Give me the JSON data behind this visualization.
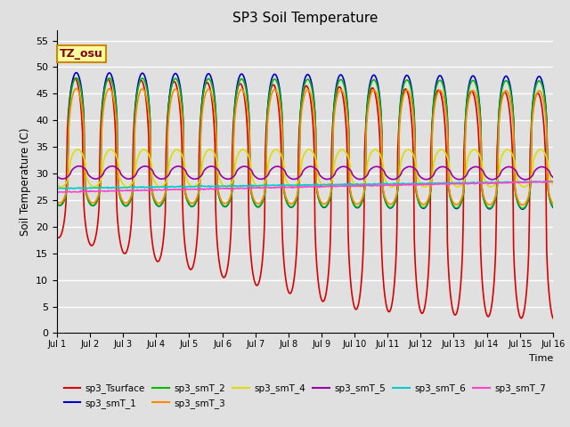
{
  "title": "SP3 Soil Temperature",
  "xlabel": "Time",
  "ylabel": "Soil Temperature (C)",
  "ylim": [
    0,
    57
  ],
  "yticks": [
    0,
    5,
    10,
    15,
    20,
    25,
    30,
    35,
    40,
    45,
    50,
    55
  ],
  "background_color": "#e0e0e0",
  "grid_color": "#ffffff",
  "annotation_text": "TZ_osu",
  "annotation_bg": "#ffffa0",
  "annotation_border": "#cc8800",
  "series": {
    "sp3_Tsurface": {
      "color": "#dd0000",
      "lw": 1.2
    },
    "sp3_smT_1": {
      "color": "#0000cc",
      "lw": 1.2
    },
    "sp3_smT_2": {
      "color": "#00bb00",
      "lw": 1.2
    },
    "sp3_smT_3": {
      "color": "#ff8800",
      "lw": 1.2
    },
    "sp3_smT_4": {
      "color": "#dddd00",
      "lw": 1.2
    },
    "sp3_smT_5": {
      "color": "#9900aa",
      "lw": 1.2
    },
    "sp3_smT_6": {
      "color": "#00cccc",
      "lw": 1.2
    },
    "sp3_smT_7": {
      "color": "#ff44cc",
      "lw": 1.2
    }
  },
  "xticklabels": [
    "Jul 1",
    "Jul 2",
    "Jul 3",
    "Jul 4",
    "Jul 5",
    "Jul 6",
    "Jul 7",
    "Jul 8",
    "Jul 9",
    "Jul 10",
    "Jul 11",
    "Jul 12",
    "Jul 13",
    "Jul 14",
    "Jul 15",
    "Jul 16"
  ],
  "n_days": 15,
  "pts_per_day": 48
}
